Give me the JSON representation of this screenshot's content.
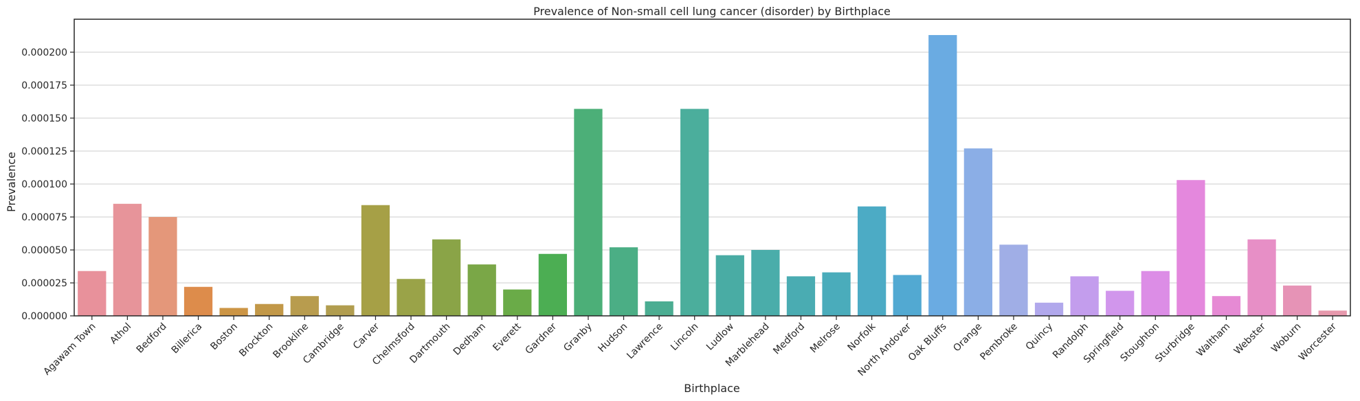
{
  "chart_data": {
    "type": "bar",
    "title": "Prevalence of Non-small cell lung cancer (disorder) by Birthplace",
    "xlabel": "Birthplace",
    "ylabel": "Prevalence",
    "ylim": [
      0,
      0.000225
    ],
    "yticks": [
      "0.000000",
      "0.000025",
      "0.000050",
      "0.000075",
      "0.000100",
      "0.000125",
      "0.000150",
      "0.000175",
      "0.000200"
    ],
    "grid": "horizontal",
    "categories": [
      "Agawam Town",
      "Athol",
      "Bedford",
      "Billerica",
      "Boston",
      "Brockton",
      "Brookline",
      "Cambridge",
      "Carver",
      "Chelmsford",
      "Dartmouth",
      "Dedham",
      "Everett",
      "Gardner",
      "Granby",
      "Hudson",
      "Lawrence",
      "Lincoln",
      "Ludlow",
      "Marblehead",
      "Medford",
      "Melrose",
      "Norfolk",
      "North Andover",
      "Oak Bluffs",
      "Orange",
      "Pembroke",
      "Quincy",
      "Randolph",
      "Springfield",
      "Stoughton",
      "Sturbridge",
      "Waltham",
      "Webster",
      "Woburn",
      "Worcester"
    ],
    "values": [
      3.4e-05,
      8.5e-05,
      7.5e-05,
      2.2e-05,
      6e-06,
      9e-06,
      1.5e-05,
      8e-06,
      8.4e-05,
      2.8e-05,
      5.8e-05,
      3.9e-05,
      2e-05,
      4.7e-05,
      0.000157,
      5.2e-05,
      1.1e-05,
      0.000157,
      4.6e-05,
      5e-05,
      3e-05,
      3.3e-05,
      8.3e-05,
      3.1e-05,
      0.000213,
      0.000127,
      5.4e-05,
      1e-05,
      3e-05,
      1.9e-05,
      3.4e-05,
      0.000103,
      1.5e-05,
      5.8e-05,
      2.3e-05,
      4e-06
    ],
    "colors": [
      "#e8919b",
      "#e7949a",
      "#e4977a",
      "#dd8c4b",
      "#cc9545",
      "#c29848",
      "#b89c4e",
      "#b19d4f",
      "#a6a046",
      "#9aa348",
      "#8aa447",
      "#7aa747",
      "#6aab48",
      "#4cae53",
      "#4caf78",
      "#4bae85",
      "#4bad92",
      "#4bae9c",
      "#49aca4",
      "#4aadaa",
      "#4aacb2",
      "#4aacbb",
      "#4cabc5",
      "#52a9d2",
      "#6aabe2",
      "#8baee6",
      "#a0aee6",
      "#b1a8ec",
      "#c39ded",
      "#d196ec",
      "#dc8de6",
      "#e488dd",
      "#e68ad4",
      "#e78fc6",
      "#e693b6",
      "#e698ac"
    ]
  }
}
